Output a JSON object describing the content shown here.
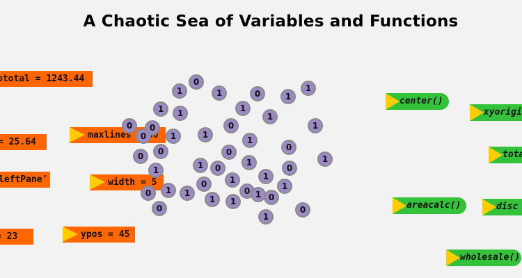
{
  "title": "A Chaotic Sea of Variables and Functions",
  "colors": {
    "background": "#f2f2f2",
    "variable_fill": "#ff6600",
    "function_fill": "#33c23a",
    "arrow_fill": "#ffcc00",
    "bit_fill": "#9b8ac4"
  },
  "variables": [
    {
      "text": "ototal = 1243.44",
      "arrow": false
    },
    {
      "text": "= 25.64",
      "arrow": false
    },
    {
      "text": "maxlines = 50",
      "arrow": true
    },
    {
      "text": "leftPane'",
      "arrow": false
    },
    {
      "text": "width = 5",
      "arrow": true
    },
    {
      "text": "= 23",
      "arrow": false
    },
    {
      "text": "ypos = 45",
      "arrow": true
    }
  ],
  "functions": [
    {
      "text": "center()"
    },
    {
      "text": "xyorigi"
    },
    {
      "text": "tota"
    },
    {
      "text": "areacalc()"
    },
    {
      "text": "disc"
    },
    {
      "text": "wholesale()"
    }
  ],
  "bits": [
    "0",
    "1",
    "1",
    "0",
    "1",
    "1",
    "1",
    "1",
    "1",
    "1",
    "0",
    "0",
    "0",
    "1",
    "0",
    "1",
    "0",
    "0",
    "1",
    "1",
    "1",
    "0",
    "1",
    "1",
    "0",
    "1",
    "0",
    "1",
    "1",
    "0",
    "1",
    "0",
    "1",
    "0",
    "1",
    "0",
    "1",
    "1",
    "1",
    "0",
    "0",
    "1",
    "0",
    "1",
    "0"
  ]
}
